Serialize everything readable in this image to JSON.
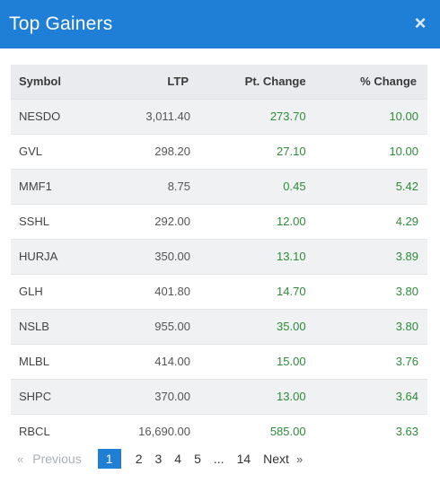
{
  "header": {
    "title": "Top Gainers",
    "close_glyph": "×"
  },
  "table": {
    "columns": [
      "Symbol",
      "LTP",
      "Pt. Change",
      "% Change"
    ],
    "rows": [
      [
        "NESDO",
        "3,011.40",
        "273.70",
        "10.00"
      ],
      [
        "GVL",
        "298.20",
        "27.10",
        "10.00"
      ],
      [
        "MMF1",
        "8.75",
        "0.45",
        "5.42"
      ],
      [
        "SSHL",
        "292.00",
        "12.00",
        "4.29"
      ],
      [
        "HURJA",
        "350.00",
        "13.10",
        "3.89"
      ],
      [
        "GLH",
        "401.80",
        "14.70",
        "3.80"
      ],
      [
        "NSLB",
        "955.00",
        "35.00",
        "3.80"
      ],
      [
        "MLBL",
        "414.00",
        "15.00",
        "3.76"
      ],
      [
        "SHPC",
        "370.00",
        "13.00",
        "3.64"
      ],
      [
        "RBCL",
        "16,690.00",
        "585.00",
        "3.63"
      ]
    ]
  },
  "pager": {
    "prev_arrow": "«",
    "prev_label": "Previous",
    "pages": [
      "1",
      "2",
      "3",
      "4",
      "5",
      "...",
      "14"
    ],
    "active_page": "1",
    "next_label": "Next",
    "next_arrow": "»"
  },
  "colors": {
    "header_bg": "#1f7fd6",
    "positive": "#2e8b3a"
  }
}
